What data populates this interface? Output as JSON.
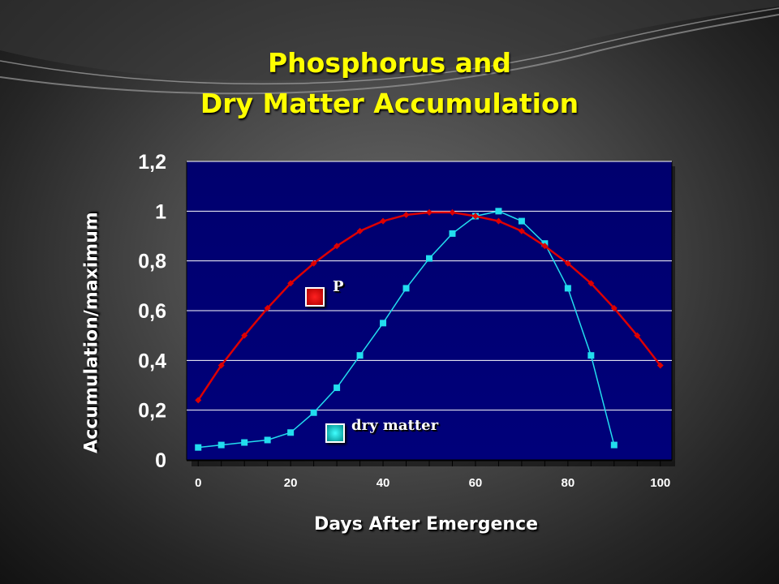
{
  "title": {
    "line1": "Phosphorus and",
    "line2": "Dry Matter Accumulation"
  },
  "colors": {
    "title": "#ffff00",
    "plot_background": "#00006e",
    "p_series": "#dd0000",
    "dry_matter_series": "#22ddee"
  },
  "chart_data": {
    "type": "line",
    "ylabel": "Accumulation/maximum",
    "xlabel": "Days After Emergence",
    "xlim": [
      -2.5,
      102.5
    ],
    "ylim": [
      0,
      1.2
    ],
    "x_ticks": [
      "0",
      "20",
      "40",
      "60",
      "80",
      "100"
    ],
    "y_ticks": [
      "0",
      "0,2",
      "0,4",
      "0,6",
      "0,8",
      "1",
      "1,2"
    ],
    "grid": "horizontal",
    "legend": "inside",
    "series": [
      {
        "name": "P",
        "x": [
          0,
          5,
          10,
          15,
          20,
          25,
          30,
          35,
          40,
          45,
          50,
          55,
          60,
          65,
          70,
          75,
          80,
          85,
          90,
          95,
          100
        ],
        "y": [
          0.24,
          0.38,
          0.5,
          0.61,
          0.71,
          0.79,
          0.86,
          0.92,
          0.96,
          0.985,
          0.995,
          0.995,
          0.98,
          0.96,
          0.92,
          0.86,
          0.79,
          0.71,
          0.61,
          0.5,
          0.38
        ]
      },
      {
        "name": "dry matter",
        "x": [
          0,
          5,
          10,
          15,
          20,
          25,
          30,
          35,
          40,
          45,
          50,
          55,
          60,
          65,
          70,
          75,
          80,
          85,
          90
        ],
        "y": [
          0.05,
          0.06,
          0.07,
          0.08,
          0.11,
          0.19,
          0.29,
          0.42,
          0.55,
          0.69,
          0.81,
          0.91,
          0.98,
          1.0,
          0.96,
          0.87,
          0.69,
          0.42,
          0.06
        ]
      }
    ]
  }
}
